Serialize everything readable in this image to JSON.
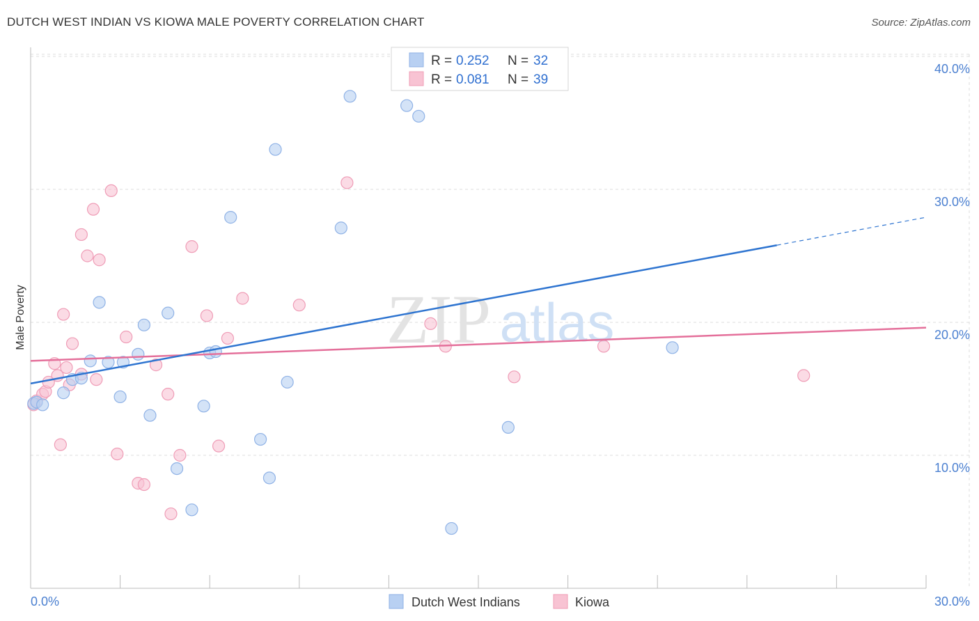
{
  "title": "DUTCH WEST INDIAN VS KIOWA MALE POVERTY CORRELATION CHART",
  "source": "Source: ZipAtlas.com",
  "watermark_zip": "ZIP",
  "watermark_atlas": "atlas",
  "colors": {
    "blue_fill": "#b8d0f2",
    "blue_stroke": "#8fb2e6",
    "blue_line": "#2e74d0",
    "pink_fill": "#f8c3d3",
    "pink_stroke": "#ef9cb6",
    "pink_line": "#e46f9a",
    "grid": "#dddddd",
    "axis_text": "#4a7fd0"
  },
  "legend": {
    "r_label": "R =",
    "n_label": "N =",
    "blue": {
      "r": "0.252",
      "n": "32"
    },
    "pink": {
      "r": "0.081",
      "n": "39"
    }
  },
  "bottom_legend": {
    "blue": "Dutch West Indians",
    "pink": "Kiowa"
  },
  "chart_data": {
    "type": "scatter",
    "title": "DUTCH WEST INDIAN VS KIOWA MALE POVERTY CORRELATION CHART",
    "xlabel": "",
    "ylabel": "Male Poverty",
    "xlim": [
      0,
      30
    ],
    "ylim": [
      0,
      41
    ],
    "x_tick_labels": [
      "0.0%",
      "30.0%"
    ],
    "y_ticks": [
      10,
      20,
      30,
      40
    ],
    "y_tick_labels": [
      "10.0%",
      "20.0%",
      "30.0%",
      "40.0%"
    ],
    "series": [
      {
        "name": "Dutch West Indians",
        "r": 0.252,
        "n": 32,
        "trend": {
          "x0": 0,
          "y0": 15.4,
          "x1": 25,
          "y1": 25.8,
          "dashed_to_x": 30,
          "dashed_to_y": 27.9
        },
        "points": [
          [
            0.1,
            13.9
          ],
          [
            0.2,
            14.0
          ],
          [
            0.4,
            13.8
          ],
          [
            1.1,
            14.7
          ],
          [
            1.4,
            15.7
          ],
          [
            1.7,
            15.8
          ],
          [
            2.0,
            17.1
          ],
          [
            2.3,
            21.5
          ],
          [
            2.6,
            17.0
          ],
          [
            3.0,
            14.4
          ],
          [
            3.6,
            17.6
          ],
          [
            3.8,
            19.8
          ],
          [
            4.0,
            13.0
          ],
          [
            4.6,
            20.7
          ],
          [
            4.9,
            9.0
          ],
          [
            5.4,
            5.9
          ],
          [
            5.8,
            13.7
          ],
          [
            6.0,
            17.7
          ],
          [
            6.2,
            17.8
          ],
          [
            6.7,
            27.9
          ],
          [
            7.7,
            11.2
          ],
          [
            8.0,
            8.3
          ],
          [
            8.2,
            33.0
          ],
          [
            8.6,
            15.5
          ],
          [
            10.4,
            27.1
          ],
          [
            10.7,
            37.0
          ],
          [
            12.6,
            36.3
          ],
          [
            13.0,
            35.5
          ],
          [
            14.1,
            4.5
          ],
          [
            16.0,
            12.1
          ],
          [
            21.5,
            18.1
          ],
          [
            3.1,
            17.0
          ]
        ]
      },
      {
        "name": "Kiowa",
        "r": 0.081,
        "n": 39,
        "trend": {
          "x0": 0,
          "y0": 17.1,
          "x1": 30,
          "y1": 19.6
        },
        "points": [
          [
            0.2,
            14.1
          ],
          [
            0.4,
            14.6
          ],
          [
            0.5,
            14.8
          ],
          [
            0.6,
            15.5
          ],
          [
            0.8,
            16.9
          ],
          [
            0.9,
            16.0
          ],
          [
            1.0,
            10.8
          ],
          [
            1.1,
            20.6
          ],
          [
            1.2,
            16.6
          ],
          [
            1.3,
            15.3
          ],
          [
            1.4,
            18.4
          ],
          [
            1.7,
            16.1
          ],
          [
            1.7,
            26.6
          ],
          [
            1.9,
            25.0
          ],
          [
            2.1,
            28.5
          ],
          [
            2.2,
            15.7
          ],
          [
            2.3,
            24.7
          ],
          [
            2.7,
            29.9
          ],
          [
            2.9,
            10.1
          ],
          [
            3.2,
            18.9
          ],
          [
            3.6,
            7.9
          ],
          [
            3.8,
            7.8
          ],
          [
            4.2,
            16.8
          ],
          [
            4.6,
            14.6
          ],
          [
            4.7,
            5.6
          ],
          [
            5.0,
            10.0
          ],
          [
            5.4,
            25.7
          ],
          [
            5.9,
            20.5
          ],
          [
            6.3,
            10.7
          ],
          [
            6.6,
            18.8
          ],
          [
            7.1,
            21.8
          ],
          [
            9.0,
            21.3
          ],
          [
            10.6,
            30.5
          ],
          [
            13.4,
            19.9
          ],
          [
            13.9,
            18.2
          ],
          [
            16.2,
            15.9
          ],
          [
            19.2,
            18.2
          ],
          [
            25.9,
            16.0
          ],
          [
            0.1,
            13.8
          ]
        ]
      }
    ]
  }
}
